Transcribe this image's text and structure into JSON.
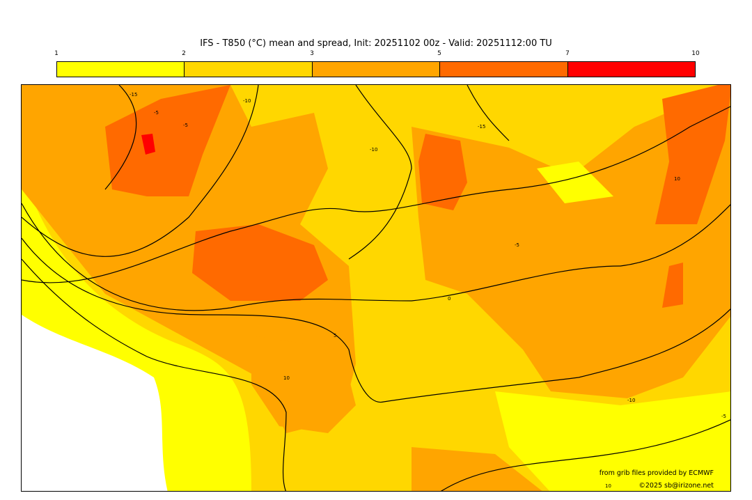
{
  "title": "IFS - T850 (°C) mean and spread, Init: 20251102 00z - Valid: 20251112:00 TU",
  "colorbar": {
    "ticks": [
      "1",
      "2",
      "3",
      "5",
      "7",
      "10"
    ],
    "colors": [
      "#ffff00",
      "#ffd700",
      "#ffa500",
      "#ff6a00",
      "#ff0000"
    ]
  },
  "map": {
    "background": "#ffd700",
    "contour_labels": [
      "-15",
      "-5",
      "-5",
      "-10",
      "-15",
      "-10",
      "-5",
      "0",
      "5",
      "10",
      "10",
      "-10",
      "10",
      "-5"
    ]
  },
  "credits": {
    "source": "from grib files provided by ECMWF",
    "copyright": "©2025 sb@irizone.net"
  }
}
